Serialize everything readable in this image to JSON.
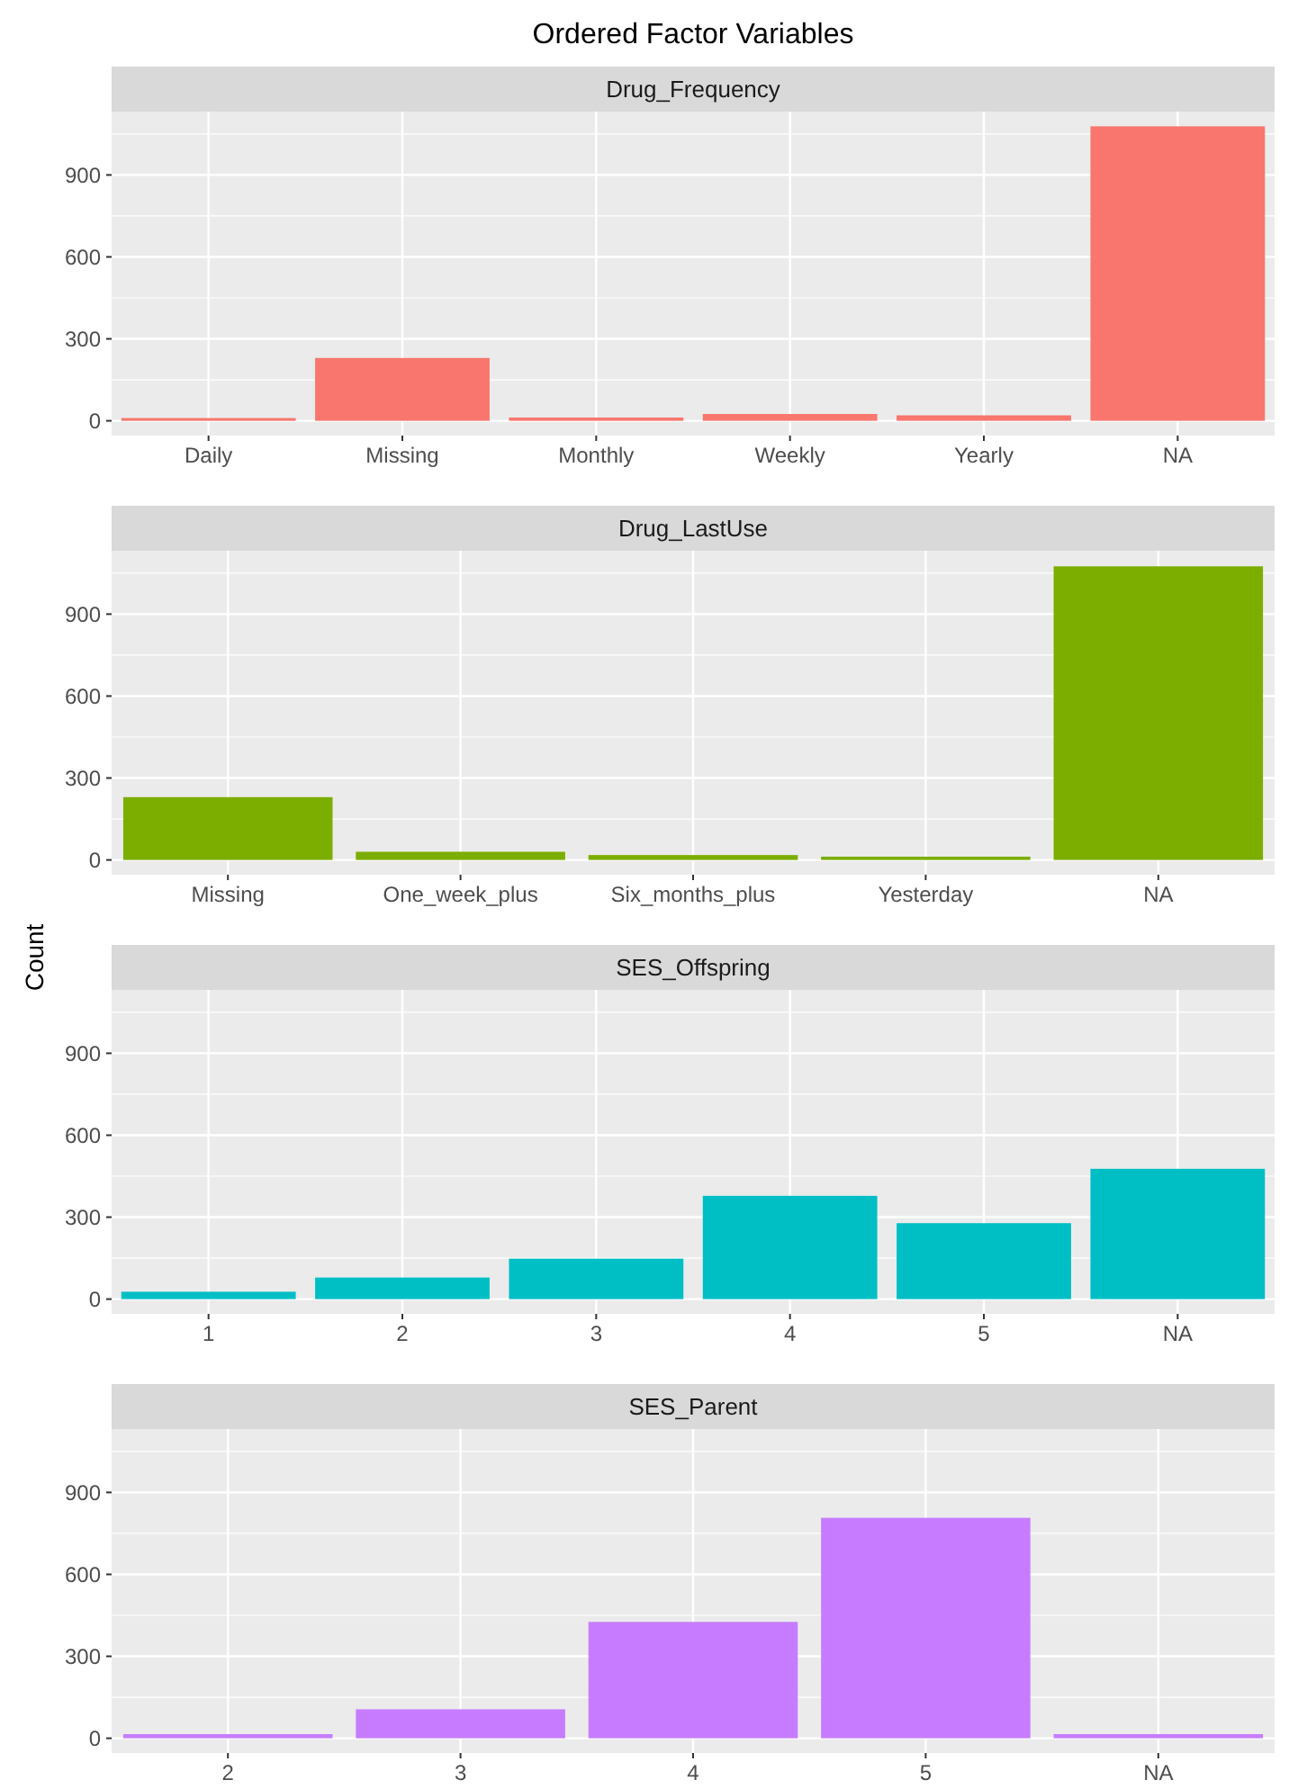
{
  "chart_data": [
    {
      "type": "bar",
      "title": "Ordered Factor Variables",
      "subtitle": "Drug_Frequency",
      "categories": [
        "Daily",
        "Missing",
        "Monthly",
        "Weekly",
        "Yearly",
        "NA"
      ],
      "values": [
        10,
        230,
        12,
        25,
        20,
        1078
      ],
      "color": "#f8766d",
      "ylim": [
        -54,
        1132
      ],
      "yticks": [
        0,
        300,
        600,
        900
      ],
      "grid": true
    },
    {
      "type": "bar",
      "subtitle": "Drug_LastUse",
      "categories": [
        "Missing",
        "One_week_plus",
        "Six_months_plus",
        "Yesterday",
        "NA"
      ],
      "values": [
        230,
        30,
        18,
        12,
        1075
      ],
      "color": "#7cae00",
      "ylim": [
        -54,
        1132
      ],
      "yticks": [
        0,
        300,
        600,
        900
      ],
      "grid": true
    },
    {
      "type": "bar",
      "subtitle": "SES_Offspring",
      "ylabel": "Count",
      "categories": [
        "1",
        "2",
        "3",
        "4",
        "5",
        "NA"
      ],
      "values": [
        27,
        79,
        148,
        378,
        278,
        477
      ],
      "color": "#00bfc4",
      "ylim": [
        -54,
        1132
      ],
      "yticks": [
        0,
        300,
        600,
        900
      ],
      "grid": true
    },
    {
      "type": "bar",
      "subtitle": "SES_Parent",
      "categories": [
        "2",
        "3",
        "4",
        "5",
        "NA"
      ],
      "values": [
        15,
        106,
        426,
        807,
        15
      ],
      "color": "#c77cff",
      "ylim": [
        -54,
        1132
      ],
      "yticks": [
        0,
        300,
        600,
        900
      ],
      "grid": true
    }
  ]
}
